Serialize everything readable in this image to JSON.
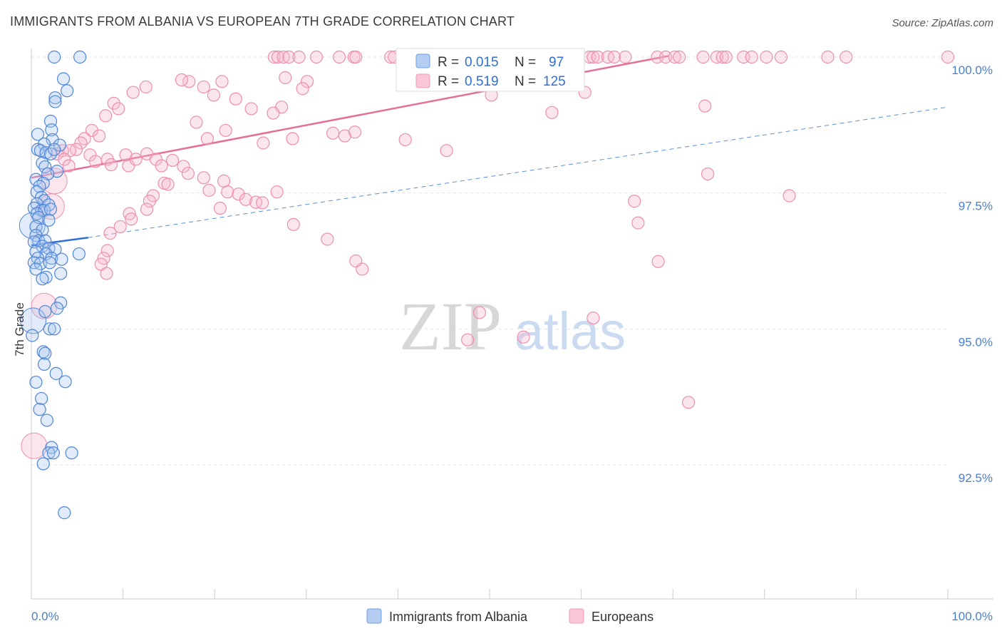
{
  "title": "IMMIGRANTS FROM ALBANIA VS EUROPEAN 7TH GRADE CORRELATION CHART",
  "source": "Source: ZipAtlas.com",
  "watermark": {
    "zip": "ZIP",
    "atlas": "atlas"
  },
  "chart_data": {
    "type": "scatter",
    "ylabel": "7th Grade",
    "xlabel": "",
    "xlim": [
      0,
      100
    ],
    "ylim": [
      90.2,
      100.4
    ],
    "x_tick_labels": [
      "0.0%",
      "100.0%"
    ],
    "y_ticks": [
      {
        "value": 100.0,
        "label": "100.0%"
      },
      {
        "value": 97.5,
        "label": "97.5%"
      },
      {
        "value": 95.0,
        "label": "95.0%"
      },
      {
        "value": 92.5,
        "label": "92.5%"
      }
    ],
    "legend": [
      {
        "name": "Immigrants from Albania",
        "color": "#6fa0e6"
      },
      {
        "name": "Europeans",
        "color": "#f09ab6"
      }
    ],
    "stats": [
      {
        "r_label": "R = ",
        "r_value": "0.015",
        "n_label": "N = ",
        "n_value": "97"
      },
      {
        "r_label": "R = ",
        "r_value": "0.519",
        "n_label": "N = ",
        "n_value": "125"
      }
    ],
    "series": [
      {
        "name": "Immigrants from Albania",
        "color": "#6fa0e6",
        "trend_solid": [
          [
            0,
            96.54
          ],
          [
            6.2,
            96.68
          ]
        ],
        "trend_dashed": [
          [
            6.2,
            96.68
          ],
          [
            100,
            99.08
          ]
        ],
        "points": [
          [
            2.5,
            100
          ],
          [
            5.3,
            100
          ],
          [
            3.5,
            99.6
          ],
          [
            3.9,
            99.38
          ],
          [
            2.6,
            99.25
          ],
          [
            2.6,
            99.18
          ],
          [
            2.1,
            98.82
          ],
          [
            2.2,
            98.66
          ],
          [
            0.7,
            98.58
          ],
          [
            2.3,
            98.48
          ],
          [
            1.4,
            98.4
          ],
          [
            3.1,
            98.38
          ],
          [
            0.7,
            98.3
          ],
          [
            1.0,
            98.28
          ],
          [
            1.6,
            98.24
          ],
          [
            2.1,
            98.22
          ],
          [
            2.5,
            98.3
          ],
          [
            1.2,
            98.05
          ],
          [
            1.5,
            97.98
          ],
          [
            2.8,
            97.9
          ],
          [
            1.8,
            97.85
          ],
          [
            0.5,
            97.75
          ],
          [
            1.3,
            97.68
          ],
          [
            0.9,
            97.62
          ],
          [
            0.6,
            97.52
          ],
          [
            1.1,
            97.42
          ],
          [
            1.4,
            97.36
          ],
          [
            0.6,
            97.3
          ],
          [
            1.9,
            97.28
          ],
          [
            0.3,
            97.22
          ],
          [
            1.1,
            97.18
          ],
          [
            1.4,
            97.18
          ],
          [
            2.1,
            97.2
          ],
          [
            0.6,
            97.12
          ],
          [
            0.8,
            97.05
          ],
          [
            1.9,
            97.0
          ],
          [
            0.5,
            96.88
          ],
          [
            1.2,
            96.82
          ],
          [
            0.5,
            96.72
          ],
          [
            0.8,
            96.62
          ],
          [
            1.5,
            96.62
          ],
          [
            0.3,
            96.6
          ],
          [
            1.2,
            96.52
          ],
          [
            1.9,
            96.48
          ],
          [
            0.5,
            96.42
          ],
          [
            2.6,
            96.46
          ],
          [
            1.6,
            96.38
          ],
          [
            5.2,
            96.38
          ],
          [
            0.7,
            96.3
          ],
          [
            2.2,
            96.3
          ],
          [
            3.3,
            96.28
          ],
          [
            0.3,
            96.22
          ],
          [
            1.0,
            96.2
          ],
          [
            2.0,
            96.22
          ],
          [
            0.5,
            96.1
          ],
          [
            3.2,
            96.02
          ],
          [
            1.6,
            95.95
          ],
          [
            1.2,
            95.92
          ],
          [
            3.2,
            95.48
          ],
          [
            2.8,
            95.38
          ],
          [
            1.5,
            95.32
          ],
          [
            2.0,
            95.0
          ],
          [
            2.5,
            95.0
          ],
          [
            0.1,
            94.88
          ],
          [
            1.3,
            94.58
          ],
          [
            1.5,
            94.55
          ],
          [
            1.4,
            94.35
          ],
          [
            2.7,
            94.18
          ],
          [
            3.7,
            94.03
          ],
          [
            0.5,
            94.02
          ],
          [
            1.1,
            93.72
          ],
          [
            0.9,
            93.52
          ],
          [
            1.7,
            93.32
          ],
          [
            2.2,
            92.82
          ],
          [
            1.9,
            92.72
          ],
          [
            2.4,
            92.72
          ],
          [
            4.4,
            92.72
          ],
          [
            1.3,
            92.52
          ],
          [
            3.6,
            91.62
          ]
        ],
        "big_points": [
          [
            0.2,
            95.15
          ],
          [
            0.1,
            96.9
          ]
        ]
      },
      {
        "name": "Europeans",
        "color": "#f09ab6",
        "trend_solid": [
          [
            0,
            97.78
          ],
          [
            69.5,
            100.02
          ]
        ],
        "points": [
          [
            26.5,
            100
          ],
          [
            26.9,
            100
          ],
          [
            27.5,
            100
          ],
          [
            28.1,
            100
          ],
          [
            29.2,
            100
          ],
          [
            31.1,
            100
          ],
          [
            33.6,
            100
          ],
          [
            35.2,
            100
          ],
          [
            35.4,
            100
          ],
          [
            39.2,
            100
          ],
          [
            39.6,
            100
          ],
          [
            40.7,
            100
          ],
          [
            42.3,
            100
          ],
          [
            45.2,
            100
          ],
          [
            46.0,
            100
          ],
          [
            46.4,
            100
          ],
          [
            47.6,
            100
          ],
          [
            48.2,
            100
          ],
          [
            49.0,
            100
          ],
          [
            50.5,
            100
          ],
          [
            51.3,
            100
          ],
          [
            52.2,
            100
          ],
          [
            52.6,
            100
          ],
          [
            53.9,
            100
          ],
          [
            54.7,
            100
          ],
          [
            55.6,
            100
          ],
          [
            56.1,
            100
          ],
          [
            56.7,
            100
          ],
          [
            60.9,
            100
          ],
          [
            61.3,
            100
          ],
          [
            61.8,
            100
          ],
          [
            62.9,
            100
          ],
          [
            63.6,
            100
          ],
          [
            64.8,
            100
          ],
          [
            68.3,
            100
          ],
          [
            69.2,
            100
          ],
          [
            70.2,
            100
          ],
          [
            70.7,
            100
          ],
          [
            73.3,
            100
          ],
          [
            74.8,
            100
          ],
          [
            75.4,
            100
          ],
          [
            75.8,
            100
          ],
          [
            77.7,
            100
          ],
          [
            78.6,
            100
          ],
          [
            80.2,
            100
          ],
          [
            81.8,
            100
          ],
          [
            86.9,
            100
          ],
          [
            88.9,
            100
          ],
          [
            100,
            100
          ],
          [
            10.6,
            98.0
          ],
          [
            14.5,
            97.68
          ],
          [
            14.9,
            97.66
          ],
          [
            13.3,
            97.45
          ],
          [
            12.9,
            97.35
          ],
          [
            12.6,
            97.2
          ],
          [
            10.7,
            97.12
          ],
          [
            10.9,
            97.02
          ],
          [
            9.7,
            96.88
          ],
          [
            8.6,
            96.76
          ],
          [
            8.3,
            96.44
          ],
          [
            7.9,
            96.3
          ],
          [
            7.6,
            96.19
          ],
          [
            8.2,
            96.02
          ],
          [
            27.7,
            99.62
          ],
          [
            30.1,
            99.55
          ],
          [
            29.6,
            99.42
          ],
          [
            27.3,
            99.08
          ],
          [
            26.4,
            98.97
          ],
          [
            24.0,
            99.05
          ],
          [
            22.3,
            99.23
          ],
          [
            19.9,
            99.3
          ],
          [
            18.8,
            99.45
          ],
          [
            20.8,
            99.55
          ],
          [
            17.2,
            99.55
          ],
          [
            16.4,
            99.58
          ],
          [
            12.5,
            99.45
          ],
          [
            11.1,
            99.35
          ],
          [
            9.0,
            99.15
          ],
          [
            9.5,
            99.05
          ],
          [
            8.1,
            98.92
          ],
          [
            6.6,
            98.65
          ],
          [
            7.4,
            98.55
          ],
          [
            5.8,
            98.5
          ],
          [
            5.4,
            98.42
          ],
          [
            4.9,
            98.3
          ],
          [
            4.2,
            98.28
          ],
          [
            3.4,
            98.28
          ],
          [
            2.8,
            98.22
          ],
          [
            3.6,
            98.12
          ],
          [
            4.1,
            98.0
          ],
          [
            6.4,
            98.2
          ],
          [
            7.0,
            98.08
          ],
          [
            8.3,
            98.12
          ],
          [
            8.7,
            98.02
          ],
          [
            10.3,
            98.2
          ],
          [
            11.4,
            98.12
          ],
          [
            12.6,
            98.22
          ],
          [
            13.6,
            98.12
          ],
          [
            14.2,
            98.0
          ],
          [
            15.4,
            98.1
          ],
          [
            16.6,
            97.99
          ],
          [
            17.1,
            97.86
          ],
          [
            18.8,
            97.78
          ],
          [
            21.0,
            97.72
          ],
          [
            19.4,
            97.55
          ],
          [
            21.4,
            97.52
          ],
          [
            22.6,
            97.48
          ],
          [
            23.4,
            97.38
          ],
          [
            24.5,
            97.33
          ],
          [
            25.2,
            97.32
          ],
          [
            26.8,
            97.52
          ],
          [
            28.5,
            98.5
          ],
          [
            32.9,
            98.6
          ],
          [
            34.2,
            98.55
          ],
          [
            35.3,
            98.62
          ],
          [
            40.8,
            98.48
          ],
          [
            45.3,
            98.28
          ],
          [
            50.2,
            99.3
          ],
          [
            56.8,
            98.98
          ],
          [
            60.4,
            99.35
          ],
          [
            65.8,
            97.35
          ],
          [
            73.5,
            99.1
          ],
          [
            82.7,
            97.45
          ],
          [
            66.2,
            96.95
          ],
          [
            68.4,
            96.24
          ],
          [
            71.7,
            93.65
          ],
          [
            48.9,
            95.3
          ],
          [
            61.3,
            95.2
          ],
          [
            73.8,
            97.85
          ],
          [
            47.6,
            94.8
          ],
          [
            53.7,
            94.85
          ],
          [
            36.1,
            96.1
          ],
          [
            35.4,
            96.25
          ],
          [
            28.6,
            96.92
          ],
          [
            32.3,
            96.65
          ],
          [
            20.6,
            97.22
          ],
          [
            25.3,
            98.42
          ],
          [
            19.2,
            98.5
          ],
          [
            21.2,
            98.65
          ],
          [
            18.0,
            98.8
          ]
        ],
        "big_points": [
          [
            2.5,
            97.72
          ],
          [
            2.2,
            97.25
          ],
          [
            1.4,
            95.42
          ],
          [
            0.3,
            92.85
          ]
        ]
      }
    ]
  }
}
